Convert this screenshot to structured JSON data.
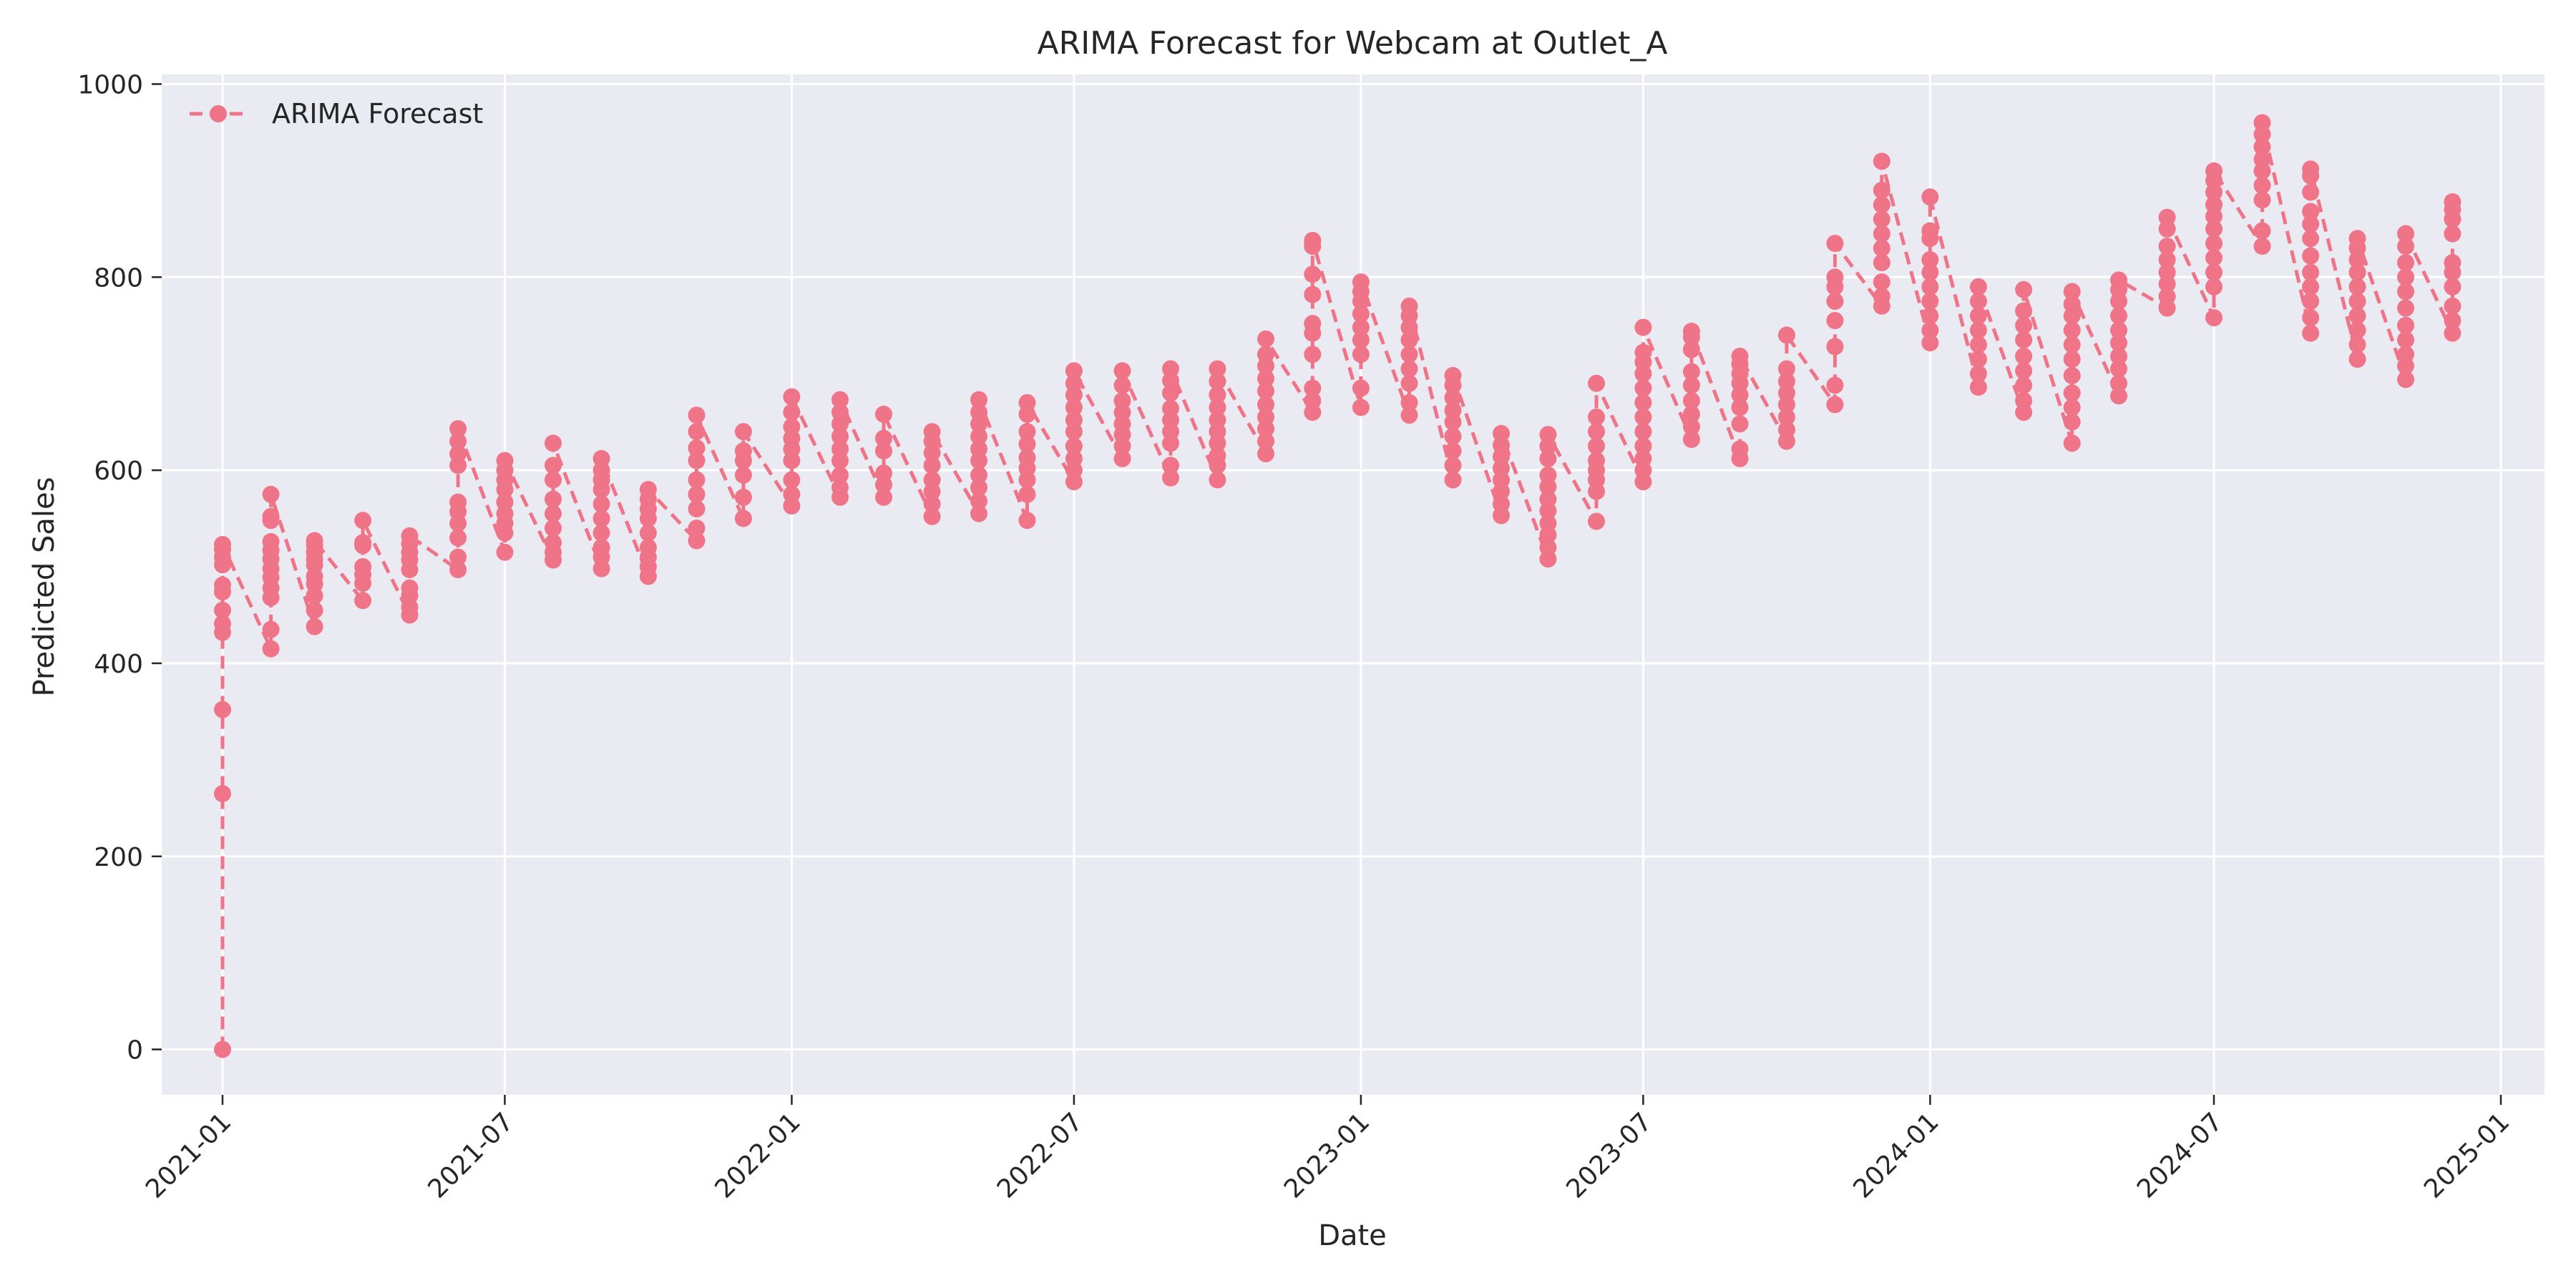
{
  "chart_data": {
    "type": "line",
    "title": "ARIMA Forecast for Webcam at Outlet_A",
    "xlabel": "Date",
    "ylabel": "Predicted Sales",
    "xlim": [
      "2020-11-23",
      "2025-01-29"
    ],
    "ylim": [
      -47,
      1010
    ],
    "x_ticks": [
      "2021-01",
      "2021-07",
      "2022-01",
      "2022-07",
      "2023-01",
      "2023-07",
      "2024-01",
      "2024-07",
      "2025-01"
    ],
    "y_ticks": [
      0,
      200,
      400,
      600,
      800,
      1000
    ],
    "grid": true,
    "legend_position": "top-left",
    "colors": {
      "series": "#f07488",
      "axes_bg": "#eaeaf2",
      "grid": "#ffffff"
    },
    "series": [
      {
        "name": "ARIMA Forecast",
        "line_style": "dashed",
        "marker": "circle",
        "points": [
          {
            "x": "2021-01-01",
            "y": [
              0,
              265,
              352,
              432,
              441,
              455,
              474,
              481,
              502,
              510,
              518,
              523
            ]
          },
          {
            "x": "2021-02-01",
            "y": [
              415,
              435,
              468,
              478,
              489,
              498,
              508,
              517,
              526,
              548,
              552,
              575
            ]
          },
          {
            "x": "2021-03-01",
            "y": [
              438,
              455,
              470,
              482,
              490,
              502,
              508,
              515,
              522,
              527
            ]
          },
          {
            "x": "2021-04-01",
            "y": [
              465,
              483,
              492,
              500,
              522,
              525,
              548
            ]
          },
          {
            "x": "2021-05-01",
            "y": [
              450,
              458,
              470,
              478,
              497,
              507,
              515,
              524,
              532
            ]
          },
          {
            "x": "2021-06-01",
            "y": [
              497,
              510,
              530,
              545,
              557,
              567,
              605,
              617,
              630,
              643
            ]
          },
          {
            "x": "2021-07-01",
            "y": [
              515,
              535,
              545,
              555,
              567,
              580,
              590,
              600,
              610
            ]
          },
          {
            "x": "2021-08-01",
            "y": [
              507,
              515,
              525,
              540,
              555,
              570,
              590,
              605,
              628
            ]
          },
          {
            "x": "2021-09-01",
            "y": [
              498,
              510,
              520,
              535,
              550,
              565,
              580,
              590,
              600,
              612
            ]
          },
          {
            "x": "2021-10-01",
            "y": [
              490,
              500,
              510,
              520,
              535,
              550,
              560,
              570,
              580
            ]
          },
          {
            "x": "2021-11-01",
            "y": [
              527,
              540,
              560,
              575,
              590,
              610,
              623,
              640,
              657
            ]
          },
          {
            "x": "2021-12-01",
            "y": [
              550,
              572,
              595,
              610,
              620,
              640
            ]
          },
          {
            "x": "2022-01-01",
            "y": [
              563,
              575,
              590,
              610,
              622,
              633,
              645,
              660,
              676
            ]
          },
          {
            "x": "2022-02-01",
            "y": [
              572,
              582,
              595,
              610,
              622,
              635,
              648,
              660,
              673
            ]
          },
          {
            "x": "2022-03-01",
            "y": [
              572,
              585,
              597,
              620,
              633,
              658
            ]
          },
          {
            "x": "2022-04-01",
            "y": [
              552,
              565,
              578,
              590,
              605,
              618,
              630,
              640
            ]
          },
          {
            "x": "2022-05-01",
            "y": [
              555,
              568,
              582,
              595,
              610,
              622,
              635,
              648,
              660,
              673
            ]
          },
          {
            "x": "2022-06-01",
            "y": [
              548,
              575,
              590,
              602,
              613,
              627,
              640,
              658,
              670
            ]
          },
          {
            "x": "2022-07-01",
            "y": [
              588,
              600,
              612,
              625,
              640,
              652,
              665,
              678,
              690,
              703
            ]
          },
          {
            "x": "2022-08-01",
            "y": [
              612,
              625,
              637,
              648,
              660,
              672,
              688,
              703
            ]
          },
          {
            "x": "2022-09-01",
            "y": [
              592,
              605,
              628,
              640,
              652,
              664,
              680,
              693,
              705
            ]
          },
          {
            "x": "2022-10-01",
            "y": [
              590,
              605,
              615,
              628,
              640,
              652,
              665,
              678,
              692,
              705
            ]
          },
          {
            "x": "2022-11-01",
            "y": [
              617,
              630,
              643,
              655,
              668,
              682,
              695,
              708,
              720,
              736
            ]
          },
          {
            "x": "2022-12-01",
            "y": [
              660,
              672,
              685,
              720,
              742,
              752,
              782,
              803,
              832,
              838
            ]
          },
          {
            "x": "2023-01-01",
            "y": [
              665,
              685,
              720,
              735,
              748,
              762,
              775,
              785,
              795
            ]
          },
          {
            "x": "2023-02-01",
            "y": [
              657,
              670,
              690,
              705,
              720,
              735,
              748,
              760,
              770
            ]
          },
          {
            "x": "2023-03-01",
            "y": [
              590,
              605,
              620,
              635,
              650,
              662,
              675,
              688,
              698
            ]
          },
          {
            "x": "2023-04-01",
            "y": [
              553,
              565,
              578,
              590,
              602,
              614,
              626,
              638
            ]
          },
          {
            "x": "2023-05-01",
            "y": [
              508,
              520,
              533,
              545,
              558,
              570,
              583,
              595,
              612,
              625,
              637
            ]
          },
          {
            "x": "2023-06-01",
            "y": [
              547,
              578,
              590,
              600,
              610,
              625,
              640,
              655,
              690
            ]
          },
          {
            "x": "2023-07-01",
            "y": [
              588,
              600,
              612,
              625,
              640,
              655,
              670,
              685,
              700,
              712,
              722,
              748
            ]
          },
          {
            "x": "2023-08-01",
            "y": [
              632,
              645,
              658,
              672,
              688,
              702,
              725,
              738,
              744
            ]
          },
          {
            "x": "2023-09-01",
            "y": [
              612,
              622,
              648,
              665,
              678,
              690,
              700,
              710,
              718
            ]
          },
          {
            "x": "2023-10-01",
            "y": [
              630,
              642,
              655,
              668,
              680,
              692,
              705,
              740
            ]
          },
          {
            "x": "2023-11-01",
            "y": [
              668,
              688,
              728,
              755,
              775,
              790,
              800,
              835
            ]
          },
          {
            "x": "2023-12-01",
            "y": [
              770,
              780,
              795,
              815,
              830,
              845,
              860,
              875,
              890,
              920
            ]
          },
          {
            "x": "2024-01-01",
            "y": [
              732,
              745,
              760,
              775,
              790,
              805,
              818,
              840,
              848,
              883
            ]
          },
          {
            "x": "2024-02-01",
            "y": [
              686,
              700,
              715,
              730,
              745,
              760,
              775,
              790
            ]
          },
          {
            "x": "2024-03-01",
            "y": [
              660,
              672,
              688,
              703,
              718,
              735,
              750,
              765,
              787
            ]
          },
          {
            "x": "2024-04-01",
            "y": [
              628,
              650,
              665,
              680,
              698,
              715,
              730,
              745,
              760,
              772,
              785
            ]
          },
          {
            "x": "2024-05-01",
            "y": [
              677,
              690,
              705,
              718,
              732,
              745,
              760,
              775,
              787,
              797
            ]
          },
          {
            "x": "2024-06-01",
            "y": [
              768,
              780,
              793,
              805,
              818,
              832,
              850,
              862
            ]
          },
          {
            "x": "2024-07-01",
            "y": [
              758,
              790,
              805,
              820,
              835,
              850,
              863,
              875,
              888,
              900,
              910
            ]
          },
          {
            "x": "2024-08-01",
            "y": [
              832,
              848,
              880,
              895,
              910,
              922,
              935,
              948,
              960
            ]
          },
          {
            "x": "2024-09-01",
            "y": [
              742,
              758,
              775,
              790,
              805,
              822,
              840,
              855,
              868,
              888,
              905,
              912
            ]
          },
          {
            "x": "2024-10-01",
            "y": [
              715,
              730,
              745,
              760,
              775,
              790,
              805,
              818,
              830,
              840
            ]
          },
          {
            "x": "2024-11-01",
            "y": [
              694,
              708,
              720,
              735,
              750,
              768,
              785,
              800,
              815,
              832,
              845
            ]
          },
          {
            "x": "2024-12-01",
            "y": [
              742,
              755,
              770,
              790,
              805,
              815,
              845,
              860,
              870,
              878
            ]
          }
        ]
      }
    ]
  }
}
